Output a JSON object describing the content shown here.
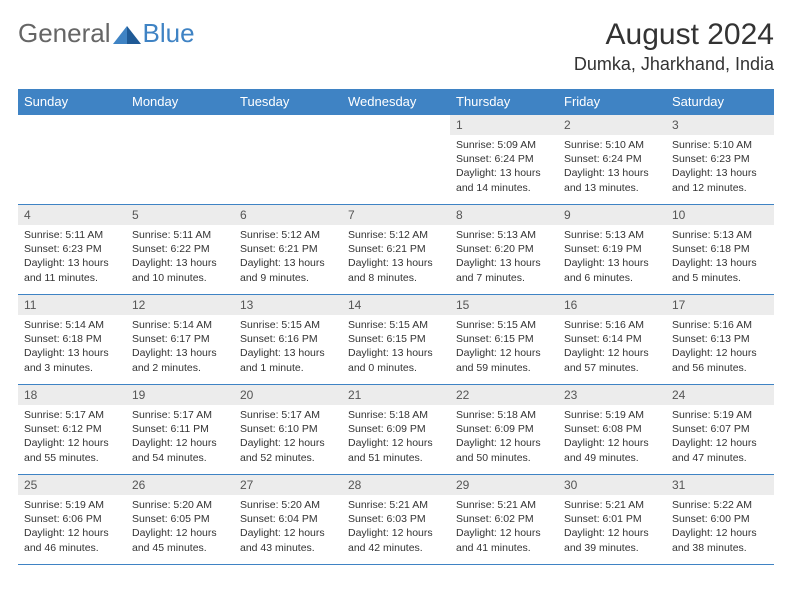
{
  "logo": {
    "text1": "General",
    "text2": "Blue"
  },
  "title": "August 2024",
  "location": "Dumka, Jharkhand, India",
  "colors": {
    "header_bg": "#3f83c4",
    "header_text": "#ffffff",
    "daynum_bg": "#ececec",
    "border": "#3f83c4",
    "text": "#333333",
    "logo_gray": "#666666",
    "logo_blue": "#3f83c4"
  },
  "day_headers": [
    "Sunday",
    "Monday",
    "Tuesday",
    "Wednesday",
    "Thursday",
    "Friday",
    "Saturday"
  ],
  "weeks": [
    [
      null,
      null,
      null,
      null,
      {
        "n": "1",
        "sr": "5:09 AM",
        "ss": "6:24 PM",
        "dl": "13 hours and 14 minutes."
      },
      {
        "n": "2",
        "sr": "5:10 AM",
        "ss": "6:24 PM",
        "dl": "13 hours and 13 minutes."
      },
      {
        "n": "3",
        "sr": "5:10 AM",
        "ss": "6:23 PM",
        "dl": "13 hours and 12 minutes."
      }
    ],
    [
      {
        "n": "4",
        "sr": "5:11 AM",
        "ss": "6:23 PM",
        "dl": "13 hours and 11 minutes."
      },
      {
        "n": "5",
        "sr": "5:11 AM",
        "ss": "6:22 PM",
        "dl": "13 hours and 10 minutes."
      },
      {
        "n": "6",
        "sr": "5:12 AM",
        "ss": "6:21 PM",
        "dl": "13 hours and 9 minutes."
      },
      {
        "n": "7",
        "sr": "5:12 AM",
        "ss": "6:21 PM",
        "dl": "13 hours and 8 minutes."
      },
      {
        "n": "8",
        "sr": "5:13 AM",
        "ss": "6:20 PM",
        "dl": "13 hours and 7 minutes."
      },
      {
        "n": "9",
        "sr": "5:13 AM",
        "ss": "6:19 PM",
        "dl": "13 hours and 6 minutes."
      },
      {
        "n": "10",
        "sr": "5:13 AM",
        "ss": "6:18 PM",
        "dl": "13 hours and 5 minutes."
      }
    ],
    [
      {
        "n": "11",
        "sr": "5:14 AM",
        "ss": "6:18 PM",
        "dl": "13 hours and 3 minutes."
      },
      {
        "n": "12",
        "sr": "5:14 AM",
        "ss": "6:17 PM",
        "dl": "13 hours and 2 minutes."
      },
      {
        "n": "13",
        "sr": "5:15 AM",
        "ss": "6:16 PM",
        "dl": "13 hours and 1 minute."
      },
      {
        "n": "14",
        "sr": "5:15 AM",
        "ss": "6:15 PM",
        "dl": "13 hours and 0 minutes."
      },
      {
        "n": "15",
        "sr": "5:15 AM",
        "ss": "6:15 PM",
        "dl": "12 hours and 59 minutes."
      },
      {
        "n": "16",
        "sr": "5:16 AM",
        "ss": "6:14 PM",
        "dl": "12 hours and 57 minutes."
      },
      {
        "n": "17",
        "sr": "5:16 AM",
        "ss": "6:13 PM",
        "dl": "12 hours and 56 minutes."
      }
    ],
    [
      {
        "n": "18",
        "sr": "5:17 AM",
        "ss": "6:12 PM",
        "dl": "12 hours and 55 minutes."
      },
      {
        "n": "19",
        "sr": "5:17 AM",
        "ss": "6:11 PM",
        "dl": "12 hours and 54 minutes."
      },
      {
        "n": "20",
        "sr": "5:17 AM",
        "ss": "6:10 PM",
        "dl": "12 hours and 52 minutes."
      },
      {
        "n": "21",
        "sr": "5:18 AM",
        "ss": "6:09 PM",
        "dl": "12 hours and 51 minutes."
      },
      {
        "n": "22",
        "sr": "5:18 AM",
        "ss": "6:09 PM",
        "dl": "12 hours and 50 minutes."
      },
      {
        "n": "23",
        "sr": "5:19 AM",
        "ss": "6:08 PM",
        "dl": "12 hours and 49 minutes."
      },
      {
        "n": "24",
        "sr": "5:19 AM",
        "ss": "6:07 PM",
        "dl": "12 hours and 47 minutes."
      }
    ],
    [
      {
        "n": "25",
        "sr": "5:19 AM",
        "ss": "6:06 PM",
        "dl": "12 hours and 46 minutes."
      },
      {
        "n": "26",
        "sr": "5:20 AM",
        "ss": "6:05 PM",
        "dl": "12 hours and 45 minutes."
      },
      {
        "n": "27",
        "sr": "5:20 AM",
        "ss": "6:04 PM",
        "dl": "12 hours and 43 minutes."
      },
      {
        "n": "28",
        "sr": "5:21 AM",
        "ss": "6:03 PM",
        "dl": "12 hours and 42 minutes."
      },
      {
        "n": "29",
        "sr": "5:21 AM",
        "ss": "6:02 PM",
        "dl": "12 hours and 41 minutes."
      },
      {
        "n": "30",
        "sr": "5:21 AM",
        "ss": "6:01 PM",
        "dl": "12 hours and 39 minutes."
      },
      {
        "n": "31",
        "sr": "5:22 AM",
        "ss": "6:00 PM",
        "dl": "12 hours and 38 minutes."
      }
    ]
  ],
  "labels": {
    "sunrise": "Sunrise: ",
    "sunset": "Sunset: ",
    "daylight": "Daylight: "
  }
}
